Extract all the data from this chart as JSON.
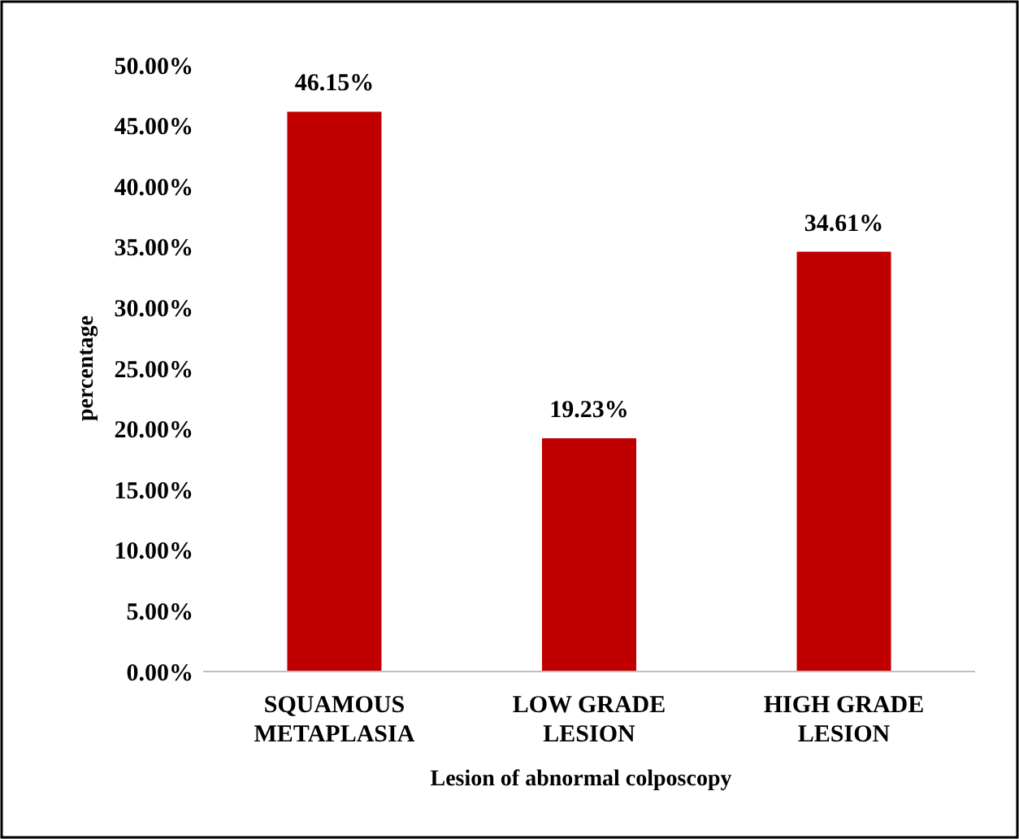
{
  "chart_data": {
    "type": "bar",
    "xlabel": "Lesion of abnormal colposcopy",
    "ylabel": "percentage",
    "categories": [
      "SQUAMOUS METAPLASIA",
      "LOW GRADE LESION",
      "HIGH GRADE LESION"
    ],
    "values": [
      46.15,
      19.23,
      34.61
    ],
    "color": "#c00000",
    "value_labels": [
      "46.15%",
      "19.23%",
      "34.61%"
    ],
    "ylim": [
      0,
      50
    ],
    "yticks": [
      {
        "value": 0,
        "label": "0.00%"
      },
      {
        "value": 5,
        "label": "5.00%"
      },
      {
        "value": 10,
        "label": "10.00%"
      },
      {
        "value": 15,
        "label": "15.00%"
      },
      {
        "value": 20,
        "label": "20.00%"
      },
      {
        "value": 25,
        "label": "25.00%"
      },
      {
        "value": 30,
        "label": "30.00%"
      },
      {
        "value": 35,
        "label": "35.00%"
      },
      {
        "value": 40,
        "label": "40.00%"
      },
      {
        "value": 45,
        "label": "45.00%"
      },
      {
        "value": 50,
        "label": "50.00%"
      }
    ]
  }
}
